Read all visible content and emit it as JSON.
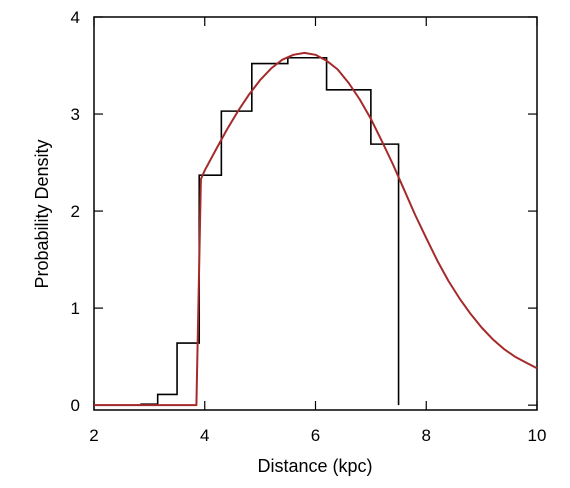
{
  "chart_data": {
    "type": "line",
    "title": "",
    "xlabel": "Distance (kpc)",
    "ylabel": "Probability Density",
    "xlim": [
      2,
      10
    ],
    "ylim": [
      -0.05,
      4
    ],
    "grid": false,
    "legend": "none",
    "x_ticks": [
      2,
      4,
      6,
      8,
      10
    ],
    "y_ticks": [
      0,
      1,
      2,
      3,
      4
    ],
    "series": [
      {
        "kind": "histogram-step",
        "color": "#000000",
        "edges": [
          2.0,
          2.85,
          3.15,
          3.5,
          3.9,
          4.3,
          4.85,
          5.5,
          6.2,
          7.0,
          7.5
        ],
        "values": [
          0.0,
          0.01,
          0.11,
          0.64,
          2.37,
          3.03,
          3.52,
          3.58,
          3.25,
          2.69
        ],
        "tail_drop_x": 7.5
      },
      {
        "kind": "model-curve",
        "color": "#a52a2a",
        "x": [
          2.0,
          3.85,
          3.93,
          4.0,
          4.2,
          4.4,
          4.6,
          4.8,
          5.0,
          5.2,
          5.4,
          5.6,
          5.8,
          6.0,
          6.2,
          6.4,
          6.6,
          6.8,
          7.0,
          7.2,
          7.4,
          7.6,
          7.8,
          8.0,
          8.2,
          8.4,
          8.6,
          8.8,
          9.0,
          9.2,
          9.4,
          9.6,
          9.8,
          10.0
        ],
        "y": [
          0.0,
          0.0,
          2.33,
          2.42,
          2.63,
          2.84,
          3.03,
          3.2,
          3.35,
          3.47,
          3.56,
          3.61,
          3.63,
          3.61,
          3.55,
          3.46,
          3.32,
          3.15,
          2.95,
          2.72,
          2.48,
          2.22,
          1.96,
          1.72,
          1.49,
          1.28,
          1.1,
          0.94,
          0.8,
          0.68,
          0.58,
          0.5,
          0.44,
          0.38
        ]
      }
    ]
  }
}
